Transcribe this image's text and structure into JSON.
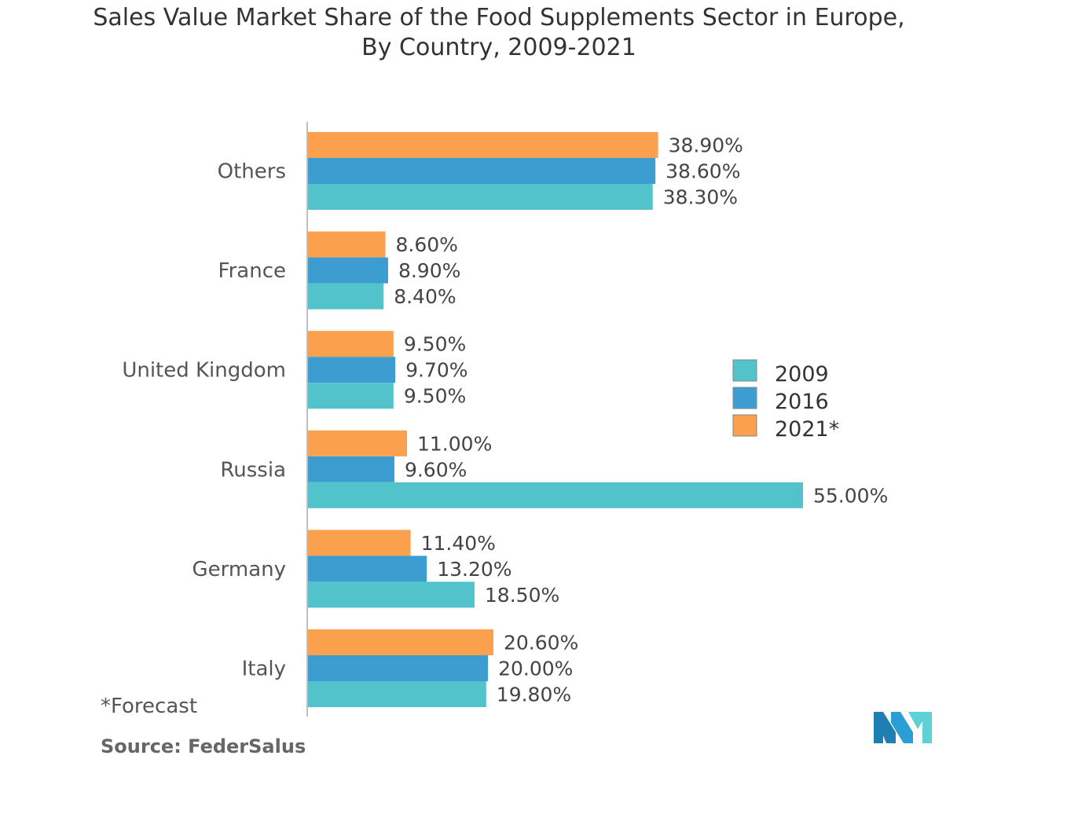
{
  "chart_data": {
    "type": "bar",
    "orientation": "horizontal",
    "title_line1": "Sales Value Market Share of the Food Supplements Sector in Europe,",
    "title_line2": "By Country, 2009-2021",
    "categories": [
      "Others",
      "France",
      "United Kingdom",
      "Russia",
      "Germany",
      "Italy"
    ],
    "series": [
      {
        "name": "2021*",
        "color": "#fba04c",
        "values": [
          38.9,
          8.6,
          9.5,
          11.0,
          11.4,
          20.6
        ],
        "labels": [
          "38.90%",
          "8.60%",
          "9.50%",
          "11.00%",
          "11.40%",
          "20.60%"
        ]
      },
      {
        "name": "2016",
        "color": "#3d9dd1",
        "values": [
          38.6,
          8.9,
          9.7,
          9.6,
          13.2,
          20.0
        ],
        "labels": [
          "38.60%",
          "8.90%",
          "9.70%",
          "9.60%",
          "13.20%",
          "20.00%"
        ]
      },
      {
        "name": "2009",
        "color": "#52c3ca",
        "values": [
          38.3,
          8.4,
          9.5,
          55.0,
          18.5,
          19.8
        ],
        "labels": [
          "38.30%",
          "8.40%",
          "9.50%",
          "55.00%",
          "18.50%",
          "19.80%"
        ]
      }
    ],
    "legend": [
      {
        "name": "2009",
        "color": "#52c3ca"
      },
      {
        "name": "2016",
        "color": "#3d9dd1"
      },
      {
        "name": "2021*",
        "color": "#fba04c"
      }
    ],
    "legend_position": "right",
    "xlim": [
      0,
      55
    ],
    "unit": "%"
  },
  "footnote": "*Forecast",
  "source": "Source: FederSalus",
  "logo_icon": "mordor-intelligence-logo-icon"
}
